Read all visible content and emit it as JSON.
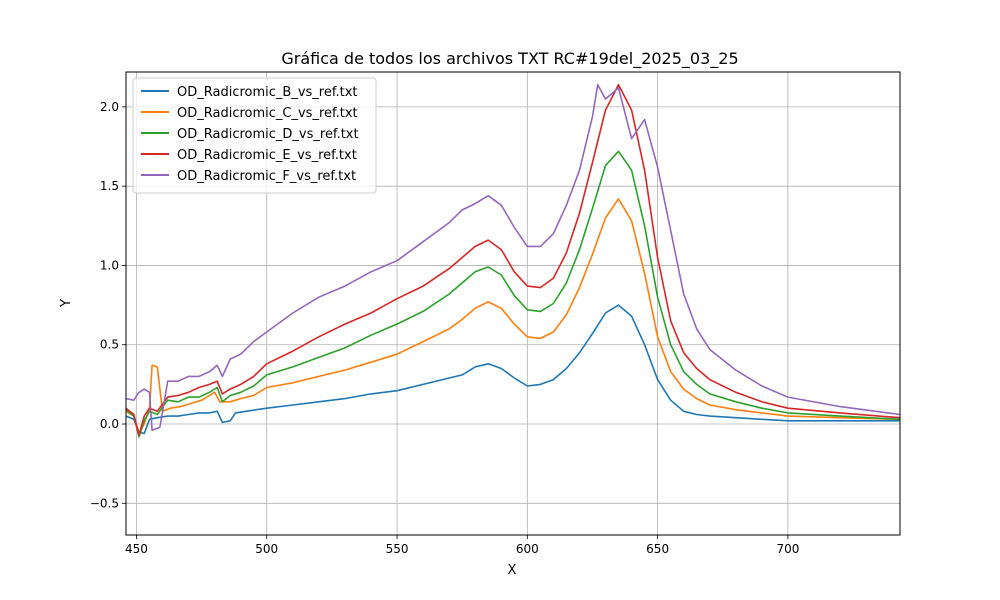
{
  "chart_data": {
    "type": "line",
    "title": "Gráfica de todos los archivos TXT RC#19del_2025_03_25",
    "xlabel": "X",
    "ylabel": "Y",
    "xlim": [
      446,
      743
    ],
    "ylim": [
      -0.7,
      2.22
    ],
    "xticks": [
      450,
      500,
      550,
      600,
      650,
      700
    ],
    "yticks": [
      -0.5,
      0.0,
      0.5,
      1.0,
      1.5,
      2.0
    ],
    "grid": true,
    "legend_position": "top-left",
    "series": [
      {
        "name": "OD_Radicromic_B_vs_ref.txt",
        "color": "#1f77b4",
        "points": [
          [
            446,
            0.05
          ],
          [
            449,
            0.03
          ],
          [
            451,
            -0.05
          ],
          [
            453,
            -0.06
          ],
          [
            455,
            0.03
          ],
          [
            458,
            0.04
          ],
          [
            462,
            0.05
          ],
          [
            466,
            0.05
          ],
          [
            470,
            0.06
          ],
          [
            474,
            0.07
          ],
          [
            478,
            0.07
          ],
          [
            481,
            0.08
          ],
          [
            483,
            0.01
          ],
          [
            486,
            0.02
          ],
          [
            488,
            0.07
          ],
          [
            492,
            0.08
          ],
          [
            496,
            0.09
          ],
          [
            500,
            0.1
          ],
          [
            510,
            0.12
          ],
          [
            520,
            0.14
          ],
          [
            530,
            0.16
          ],
          [
            540,
            0.19
          ],
          [
            550,
            0.21
          ],
          [
            560,
            0.25
          ],
          [
            570,
            0.29
          ],
          [
            575,
            0.31
          ],
          [
            580,
            0.36
          ],
          [
            585,
            0.38
          ],
          [
            590,
            0.35
          ],
          [
            595,
            0.29
          ],
          [
            600,
            0.24
          ],
          [
            605,
            0.25
          ],
          [
            610,
            0.28
          ],
          [
            615,
            0.35
          ],
          [
            620,
            0.45
          ],
          [
            625,
            0.57
          ],
          [
            630,
            0.7
          ],
          [
            635,
            0.75
          ],
          [
            640,
            0.68
          ],
          [
            645,
            0.5
          ],
          [
            650,
            0.28
          ],
          [
            655,
            0.15
          ],
          [
            660,
            0.08
          ],
          [
            665,
            0.06
          ],
          [
            670,
            0.05
          ],
          [
            680,
            0.04
          ],
          [
            690,
            0.03
          ],
          [
            700,
            0.02
          ],
          [
            720,
            0.02
          ],
          [
            743,
            0.02
          ]
        ]
      },
      {
        "name": "OD_Radicromic_C_vs_ref.txt",
        "color": "#ff7f0e",
        "points": [
          [
            446,
            0.08
          ],
          [
            449,
            0.05
          ],
          [
            451,
            -0.06
          ],
          [
            453,
            0.0
          ],
          [
            455,
            0.1
          ],
          [
            456,
            0.37
          ],
          [
            458,
            0.36
          ],
          [
            460,
            0.08
          ],
          [
            463,
            0.1
          ],
          [
            467,
            0.11
          ],
          [
            471,
            0.13
          ],
          [
            475,
            0.15
          ],
          [
            478,
            0.18
          ],
          [
            480,
            0.2
          ],
          [
            482,
            0.14
          ],
          [
            486,
            0.14
          ],
          [
            490,
            0.16
          ],
          [
            495,
            0.18
          ],
          [
            500,
            0.23
          ],
          [
            510,
            0.26
          ],
          [
            520,
            0.3
          ],
          [
            530,
            0.34
          ],
          [
            540,
            0.39
          ],
          [
            550,
            0.44
          ],
          [
            560,
            0.52
          ],
          [
            570,
            0.6
          ],
          [
            575,
            0.66
          ],
          [
            580,
            0.73
          ],
          [
            585,
            0.77
          ],
          [
            590,
            0.73
          ],
          [
            595,
            0.63
          ],
          [
            600,
            0.55
          ],
          [
            605,
            0.54
          ],
          [
            610,
            0.58
          ],
          [
            615,
            0.69
          ],
          [
            620,
            0.86
          ],
          [
            625,
            1.07
          ],
          [
            630,
            1.3
          ],
          [
            635,
            1.42
          ],
          [
            640,
            1.28
          ],
          [
            645,
            0.95
          ],
          [
            650,
            0.55
          ],
          [
            655,
            0.33
          ],
          [
            660,
            0.22
          ],
          [
            665,
            0.16
          ],
          [
            670,
            0.12
          ],
          [
            680,
            0.09
          ],
          [
            690,
            0.07
          ],
          [
            700,
            0.05
          ],
          [
            720,
            0.04
          ],
          [
            743,
            0.03
          ]
        ]
      },
      {
        "name": "OD_Radicromic_D_vs_ref.txt",
        "color": "#2ca02c",
        "points": [
          [
            446,
            0.09
          ],
          [
            449,
            0.05
          ],
          [
            451,
            -0.08
          ],
          [
            453,
            0.02
          ],
          [
            455,
            0.08
          ],
          [
            458,
            0.06
          ],
          [
            462,
            0.15
          ],
          [
            466,
            0.14
          ],
          [
            470,
            0.17
          ],
          [
            474,
            0.17
          ],
          [
            478,
            0.2
          ],
          [
            481,
            0.23
          ],
          [
            483,
            0.14
          ],
          [
            486,
            0.18
          ],
          [
            490,
            0.2
          ],
          [
            495,
            0.24
          ],
          [
            500,
            0.31
          ],
          [
            510,
            0.36
          ],
          [
            520,
            0.42
          ],
          [
            530,
            0.48
          ],
          [
            540,
            0.56
          ],
          [
            550,
            0.63
          ],
          [
            560,
            0.71
          ],
          [
            570,
            0.82
          ],
          [
            575,
            0.89
          ],
          [
            580,
            0.96
          ],
          [
            585,
            0.99
          ],
          [
            590,
            0.94
          ],
          [
            595,
            0.81
          ],
          [
            600,
            0.72
          ],
          [
            605,
            0.71
          ],
          [
            610,
            0.76
          ],
          [
            615,
            0.89
          ],
          [
            620,
            1.1
          ],
          [
            625,
            1.36
          ],
          [
            630,
            1.63
          ],
          [
            635,
            1.72
          ],
          [
            640,
            1.6
          ],
          [
            645,
            1.25
          ],
          [
            650,
            0.8
          ],
          [
            655,
            0.5
          ],
          [
            660,
            0.33
          ],
          [
            665,
            0.25
          ],
          [
            670,
            0.19
          ],
          [
            680,
            0.14
          ],
          [
            690,
            0.1
          ],
          [
            700,
            0.07
          ],
          [
            720,
            0.05
          ],
          [
            743,
            0.03
          ]
        ]
      },
      {
        "name": "OD_Radicromic_E_vs_ref.txt",
        "color": "#d62728",
        "points": [
          [
            446,
            0.1
          ],
          [
            449,
            0.06
          ],
          [
            451,
            -0.07
          ],
          [
            453,
            0.05
          ],
          [
            455,
            0.1
          ],
          [
            458,
            0.08
          ],
          [
            462,
            0.17
          ],
          [
            466,
            0.18
          ],
          [
            470,
            0.2
          ],
          [
            474,
            0.23
          ],
          [
            478,
            0.25
          ],
          [
            481,
            0.27
          ],
          [
            483,
            0.19
          ],
          [
            486,
            0.22
          ],
          [
            490,
            0.25
          ],
          [
            495,
            0.3
          ],
          [
            500,
            0.38
          ],
          [
            510,
            0.46
          ],
          [
            520,
            0.55
          ],
          [
            530,
            0.63
          ],
          [
            540,
            0.7
          ],
          [
            550,
            0.79
          ],
          [
            560,
            0.87
          ],
          [
            570,
            0.98
          ],
          [
            575,
            1.05
          ],
          [
            580,
            1.12
          ],
          [
            585,
            1.16
          ],
          [
            590,
            1.1
          ],
          [
            595,
            0.96
          ],
          [
            600,
            0.87
          ],
          [
            605,
            0.86
          ],
          [
            610,
            0.92
          ],
          [
            615,
            1.08
          ],
          [
            620,
            1.33
          ],
          [
            625,
            1.65
          ],
          [
            630,
            1.98
          ],
          [
            635,
            2.14
          ],
          [
            640,
            1.98
          ],
          [
            645,
            1.6
          ],
          [
            650,
            1.05
          ],
          [
            655,
            0.65
          ],
          [
            660,
            0.45
          ],
          [
            665,
            0.35
          ],
          [
            670,
            0.28
          ],
          [
            680,
            0.2
          ],
          [
            690,
            0.14
          ],
          [
            700,
            0.1
          ],
          [
            720,
            0.07
          ],
          [
            743,
            0.04
          ]
        ]
      },
      {
        "name": "OD_Radicromic_F_vs_ref.txt",
        "color": "#9467bd",
        "points": [
          [
            446,
            0.16
          ],
          [
            449,
            0.15
          ],
          [
            451,
            0.2
          ],
          [
            453,
            0.22
          ],
          [
            455,
            0.2
          ],
          [
            456,
            -0.04
          ],
          [
            459,
            -0.02
          ],
          [
            462,
            0.27
          ],
          [
            466,
            0.27
          ],
          [
            470,
            0.3
          ],
          [
            474,
            0.3
          ],
          [
            478,
            0.33
          ],
          [
            481,
            0.37
          ],
          [
            483,
            0.3
          ],
          [
            486,
            0.41
          ],
          [
            490,
            0.44
          ],
          [
            495,
            0.52
          ],
          [
            500,
            0.58
          ],
          [
            510,
            0.7
          ],
          [
            520,
            0.8
          ],
          [
            530,
            0.87
          ],
          [
            540,
            0.96
          ],
          [
            550,
            1.03
          ],
          [
            560,
            1.15
          ],
          [
            570,
            1.27
          ],
          [
            575,
            1.35
          ],
          [
            580,
            1.39
          ],
          [
            585,
            1.44
          ],
          [
            590,
            1.38
          ],
          [
            595,
            1.24
          ],
          [
            600,
            1.12
          ],
          [
            605,
            1.12
          ],
          [
            610,
            1.2
          ],
          [
            615,
            1.38
          ],
          [
            620,
            1.6
          ],
          [
            625,
            1.94
          ],
          [
            627,
            2.14
          ],
          [
            630,
            2.05
          ],
          [
            635,
            2.12
          ],
          [
            640,
            1.8
          ],
          [
            645,
            1.92
          ],
          [
            650,
            1.62
          ],
          [
            655,
            1.22
          ],
          [
            660,
            0.82
          ],
          [
            665,
            0.6
          ],
          [
            670,
            0.47
          ],
          [
            680,
            0.34
          ],
          [
            690,
            0.24
          ],
          [
            700,
            0.17
          ],
          [
            720,
            0.11
          ],
          [
            743,
            0.06
          ]
        ]
      }
    ]
  }
}
